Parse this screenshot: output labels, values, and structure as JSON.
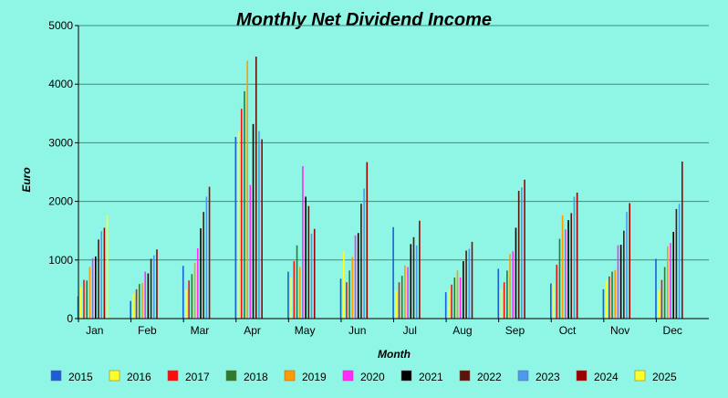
{
  "chart_data": {
    "type": "bar",
    "title": "Monthly Net Dividend Income",
    "xlabel": "Month",
    "ylabel": "Euro",
    "ylim": [
      0,
      5000
    ],
    "yticks": [
      0,
      1000,
      2000,
      3000,
      4000,
      5000
    ],
    "grid": true,
    "legend_position": "bottom",
    "categories": [
      "Jan",
      "Feb",
      "Mar",
      "Apr",
      "May",
      "Jun",
      "Jul",
      "Aug",
      "Sep",
      "Oct",
      "Nov",
      "Dec"
    ],
    "series": [
      {
        "name": "2015",
        "color": "#1a5fd6",
        "values": [
          380,
          300,
          900,
          3100,
          800,
          680,
          1560,
          450,
          850,
          600,
          500,
          1020
        ]
      },
      {
        "name": "2016",
        "color": "#ffff26",
        "values": [
          540,
          420,
          500,
          3200,
          700,
          1150,
          470,
          500,
          500,
          600,
          650,
          480
        ]
      },
      {
        "name": "2017",
        "color": "#ff0d0d",
        "values": [
          660,
          500,
          650,
          3580,
          980,
          620,
          620,
          580,
          620,
          920,
          720,
          660
        ]
      },
      {
        "name": "2018",
        "color": "#2e7d2e",
        "values": [
          650,
          590,
          760,
          3880,
          1250,
          820,
          730,
          700,
          820,
          1360,
          800,
          880
        ]
      },
      {
        "name": "2019",
        "color": "#ff9a00",
        "values": [
          880,
          610,
          950,
          4400,
          880,
          1050,
          910,
          820,
          1100,
          1760,
          830,
          1230
        ]
      },
      {
        "name": "2020",
        "color": "#ff2bff",
        "values": [
          1030,
          800,
          1200,
          2280,
          2600,
          1420,
          880,
          700,
          1150,
          1520,
          1250,
          1290
        ]
      },
      {
        "name": "2021",
        "color": "#000000",
        "values": [
          1060,
          770,
          1540,
          3320,
          2080,
          1460,
          1270,
          980,
          1550,
          1680,
          1260,
          1480
        ]
      },
      {
        "name": "2022",
        "color": "#5a1408",
        "values": [
          1350,
          1020,
          1820,
          4470,
          1920,
          1960,
          1390,
          1160,
          2180,
          1800,
          1500,
          1870
        ]
      },
      {
        "name": "2023",
        "color": "#4a9af0",
        "values": [
          1490,
          1080,
          2080,
          3200,
          1450,
          2220,
          1250,
          1190,
          2240,
          2080,
          1820,
          1960
        ]
      },
      {
        "name": "2024",
        "color": "#a00000",
        "values": [
          1550,
          1180,
          2250,
          3060,
          1530,
          2670,
          1670,
          1310,
          2370,
          2150,
          1970,
          2680
        ]
      },
      {
        "name": "2025",
        "color": "#ffff26",
        "values": [
          1760,
          0,
          0,
          0,
          0,
          0,
          0,
          0,
          0,
          0,
          0,
          0
        ]
      }
    ]
  }
}
